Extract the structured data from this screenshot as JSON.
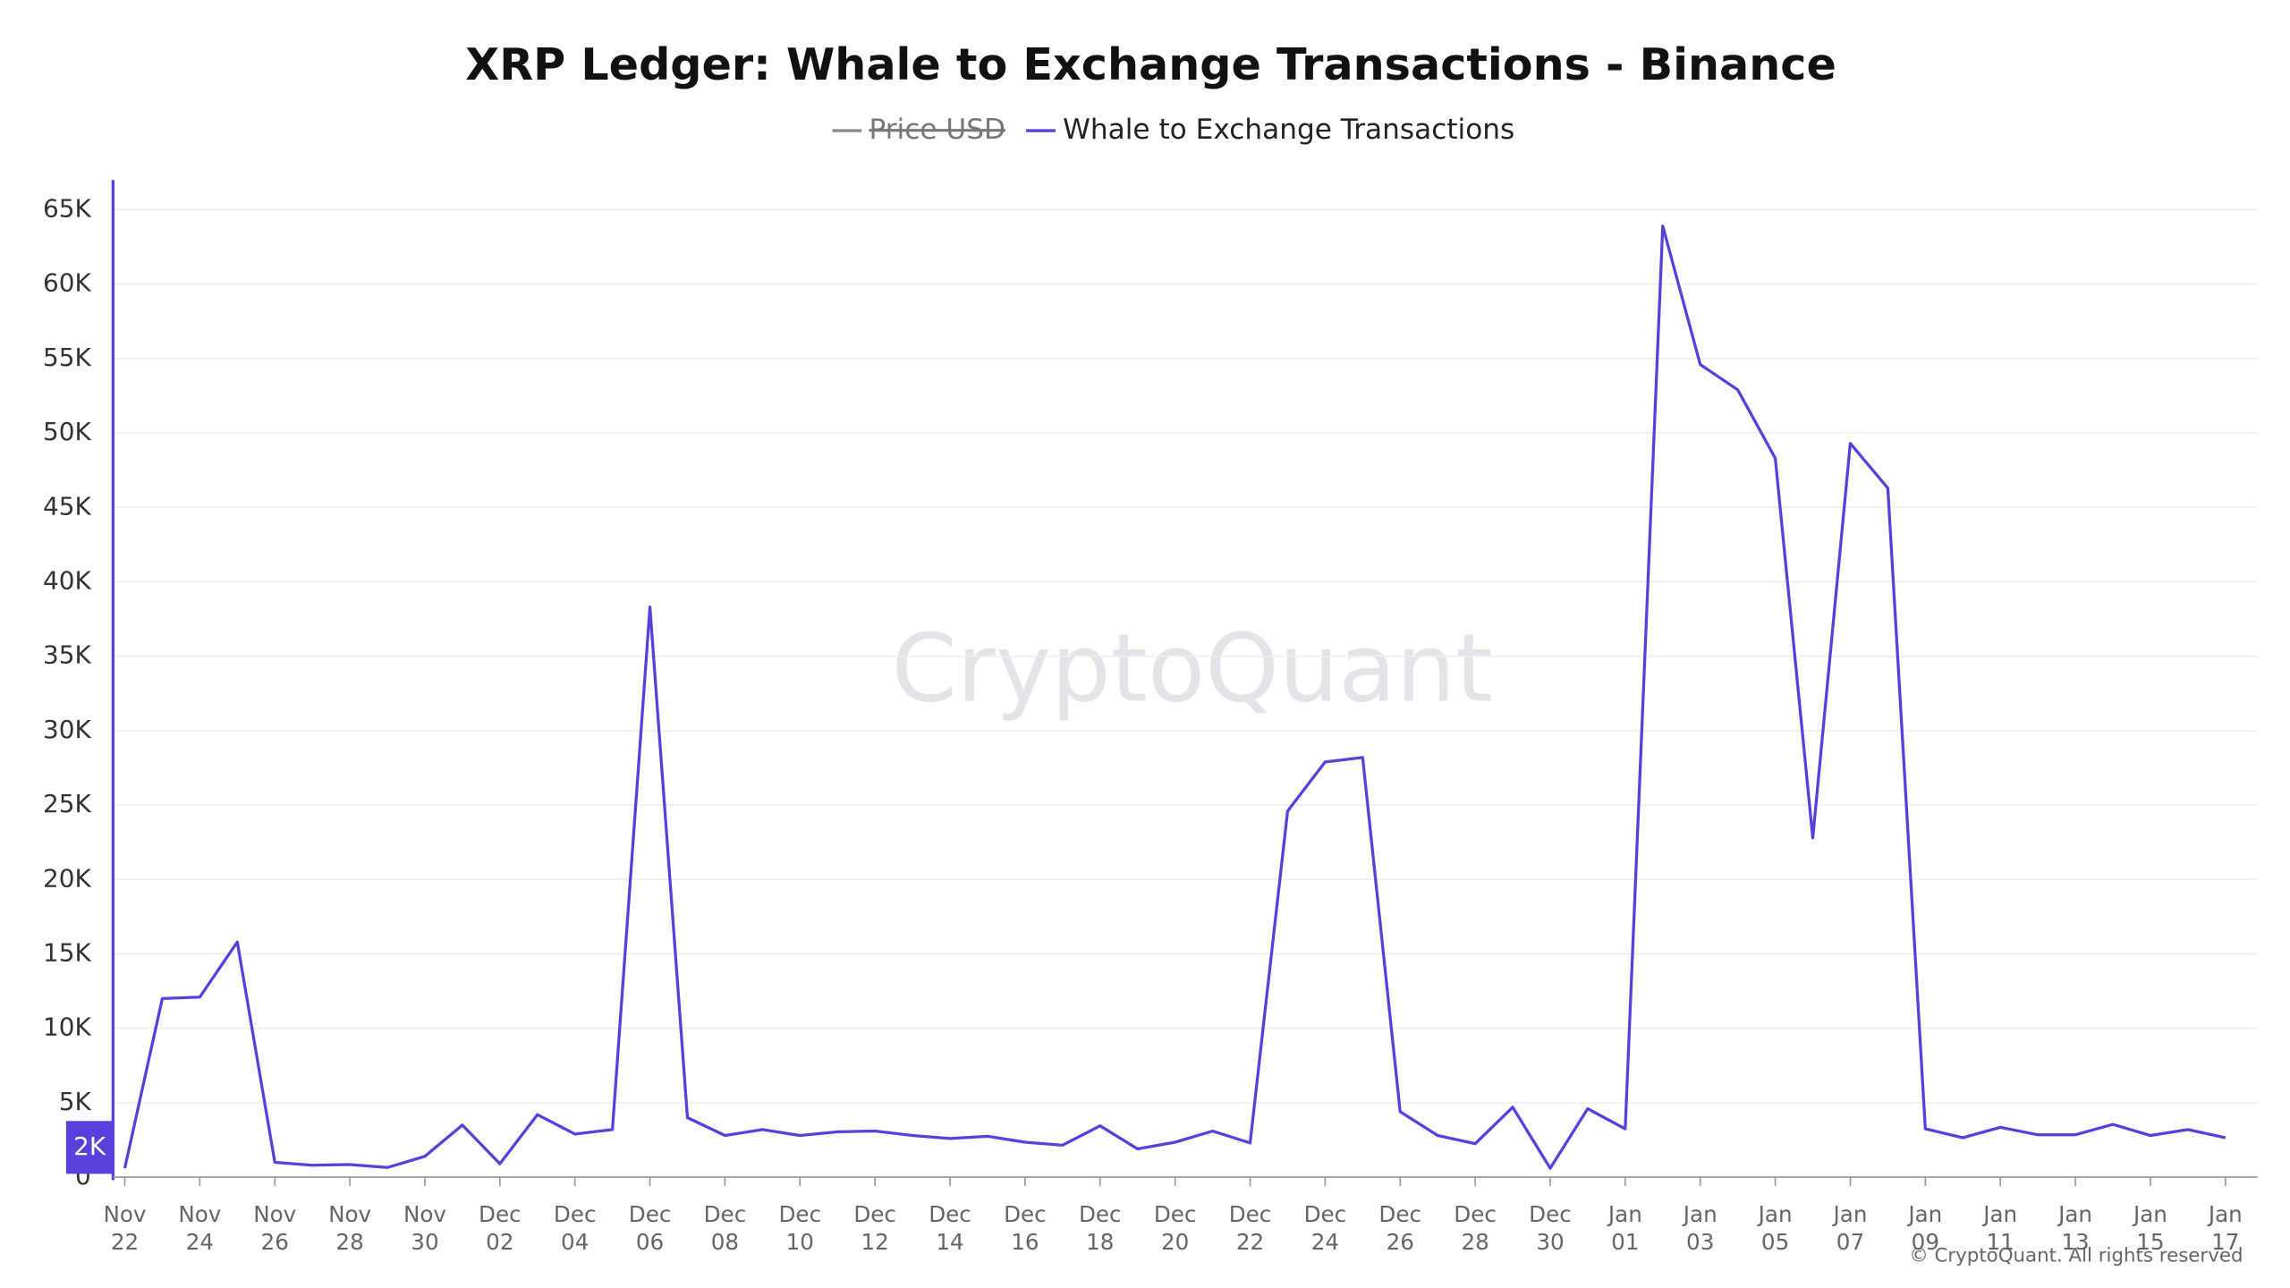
{
  "chart_data": {
    "type": "line",
    "title": "XRP Ledger: Whale to Exchange Transactions - Binance",
    "categories": [
      "Nov 22",
      null,
      "Nov 24",
      null,
      "Nov 26",
      null,
      "Nov 28",
      null,
      "Nov 30",
      null,
      "Dec 02",
      null,
      "Dec 04",
      null,
      "Dec 06",
      null,
      "Dec 08",
      null,
      "Dec 10",
      null,
      "Dec 12",
      null,
      "Dec 14",
      null,
      "Dec 16",
      null,
      "Dec 18",
      null,
      "Dec 20",
      null,
      "Dec 22",
      null,
      "Dec 24",
      null,
      "Dec 26",
      null,
      "Dec 28",
      null,
      "Dec 30",
      null,
      "Jan 01",
      null,
      "Jan 03",
      null,
      "Jan 05",
      null,
      "Jan 07",
      null,
      "Jan 09",
      null,
      "Jan 11",
      null,
      "Jan 13",
      null,
      "Jan 15",
      null,
      "Jan 17"
    ],
    "series": [
      {
        "name": "Whale to Exchange Transactions",
        "color": "#5b3fdc",
        "values": [
          600,
          12000,
          12100,
          15800,
          1000,
          800,
          850,
          650,
          1400,
          3500,
          900,
          4200,
          2900,
          3200,
          38300,
          4000,
          2800,
          3200,
          2800,
          3050,
          3100,
          2800,
          2600,
          2750,
          2350,
          2150,
          3450,
          1900,
          2350,
          3100,
          2300,
          24600,
          27900,
          28200,
          4400,
          2800,
          2250,
          4700,
          600,
          4600,
          3250,
          63900,
          54600,
          52900,
          48300,
          22800,
          49300,
          46300,
          3250,
          2650,
          3350,
          2850,
          2850,
          3550,
          2800,
          3200,
          2650
        ]
      }
    ],
    "hidden_series": [
      {
        "name": "Price USD",
        "color": "#8a8a8a"
      }
    ],
    "ylim": [
      0,
      67000
    ],
    "yticks": [
      0,
      {
        "value": 5000,
        "label": "5K"
      },
      {
        "value": 10000,
        "label": "10K"
      },
      {
        "value": 15000,
        "label": "15K"
      },
      {
        "value": 20000,
        "label": "20K"
      },
      {
        "value": 25000,
        "label": "25K"
      },
      {
        "value": 30000,
        "label": "30K"
      },
      {
        "value": 35000,
        "label": "35K"
      },
      {
        "value": 40000,
        "label": "40K"
      },
      {
        "value": 45000,
        "label": "45K"
      },
      {
        "value": 50000,
        "label": "50K"
      },
      {
        "value": 55000,
        "label": "55K"
      },
      {
        "value": 60000,
        "label": "60K"
      },
      {
        "value": 65000,
        "label": "65K"
      }
    ],
    "grid": true,
    "cursor": {
      "value": 2000,
      "label": "2K"
    },
    "watermark": "CryptoQuant",
    "copyright": "© CryptoQuant. All rights reserved"
  }
}
